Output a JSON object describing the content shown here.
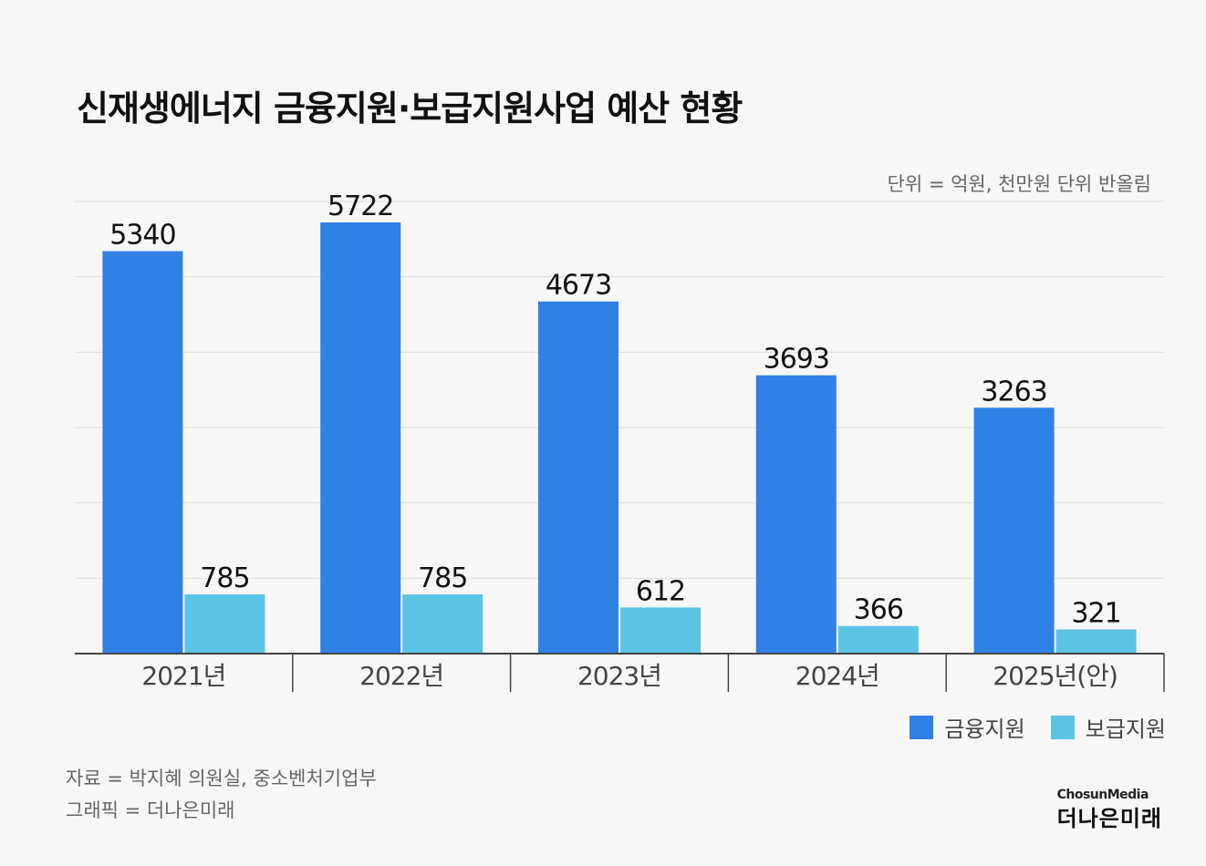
{
  "title": "신재생에너지 금융지원·보급지원사업 예산 현황",
  "unit_note": "단위 = 억원, 천만원 단위 반올림",
  "colors": {
    "finance": "#3081e4",
    "supply": "#5bc4e4",
    "grid": "#dddddd",
    "axis": "#444444"
  },
  "legend": {
    "finance": "금융지원",
    "supply": "보급지원"
  },
  "footer": {
    "source": "자료 = 박지혜 의원실, 중소벤처기업부",
    "credit": "그래픽 = 더나은미래"
  },
  "logo": {
    "small": "ChosunMedia",
    "main": "더나은미래"
  },
  "chart_data": {
    "type": "bar",
    "categories": [
      "2021년",
      "2022년",
      "2023년",
      "2024년",
      "2025년(안)"
    ],
    "series": [
      {
        "name": "금융지원",
        "values": [
          5340,
          5722,
          4673,
          3693,
          3263
        ]
      },
      {
        "name": "보급지원",
        "values": [
          785,
          785,
          612,
          366,
          321
        ]
      }
    ],
    "ylim": [
      0,
      6000
    ],
    "grid": true,
    "legend_position": "bottom-right"
  }
}
